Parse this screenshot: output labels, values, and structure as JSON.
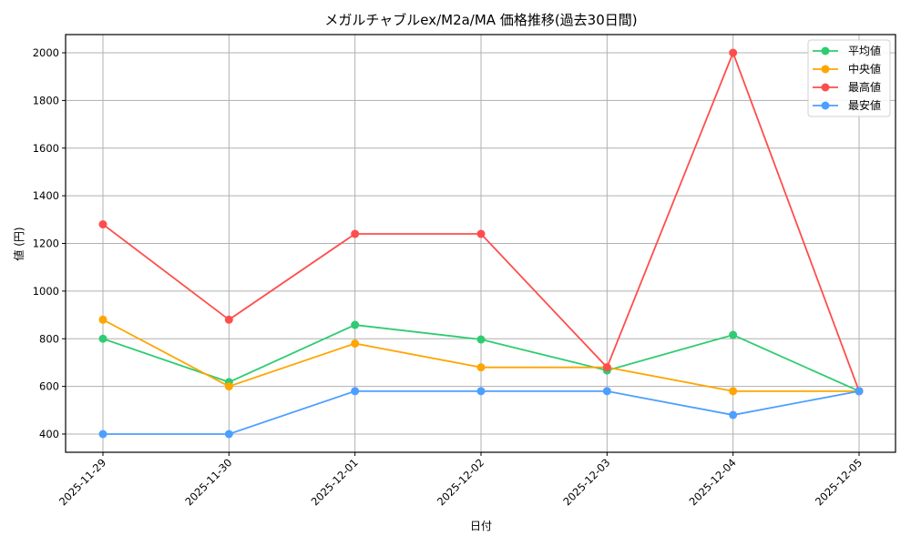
{
  "chart_data": {
    "type": "line",
    "title": "メガルチャブルex/M2a/MA 価格推移(過去30日間)",
    "xlabel": "日付",
    "ylabel": "値 (円)",
    "categories": [
      "2025-11-29",
      "2025-11-30",
      "2025-12-01",
      "2025-12-02",
      "2025-12-03",
      "2025-12-04",
      "2025-12-05"
    ],
    "yticks": [
      400,
      600,
      800,
      1000,
      1200,
      1400,
      1600,
      1800,
      2000
    ],
    "ylim": [
      320,
      2080
    ],
    "grid": true,
    "legend_position": "upper right",
    "series": [
      {
        "name": "平均値",
        "color": "#2ecc71",
        "values": [
          800,
          618,
          858,
          797,
          667,
          816,
          580
        ]
      },
      {
        "name": "中央値",
        "color": "#ffa500",
        "values": [
          880,
          600,
          780,
          680,
          680,
          580,
          580
        ]
      },
      {
        "name": "最高値",
        "color": "#ff4d4d",
        "values": [
          1280,
          880,
          1240,
          1240,
          680,
          2000,
          580
        ]
      },
      {
        "name": "最安値",
        "color": "#4d9fff",
        "values": [
          400,
          400,
          580,
          580,
          580,
          480,
          580
        ]
      }
    ]
  }
}
